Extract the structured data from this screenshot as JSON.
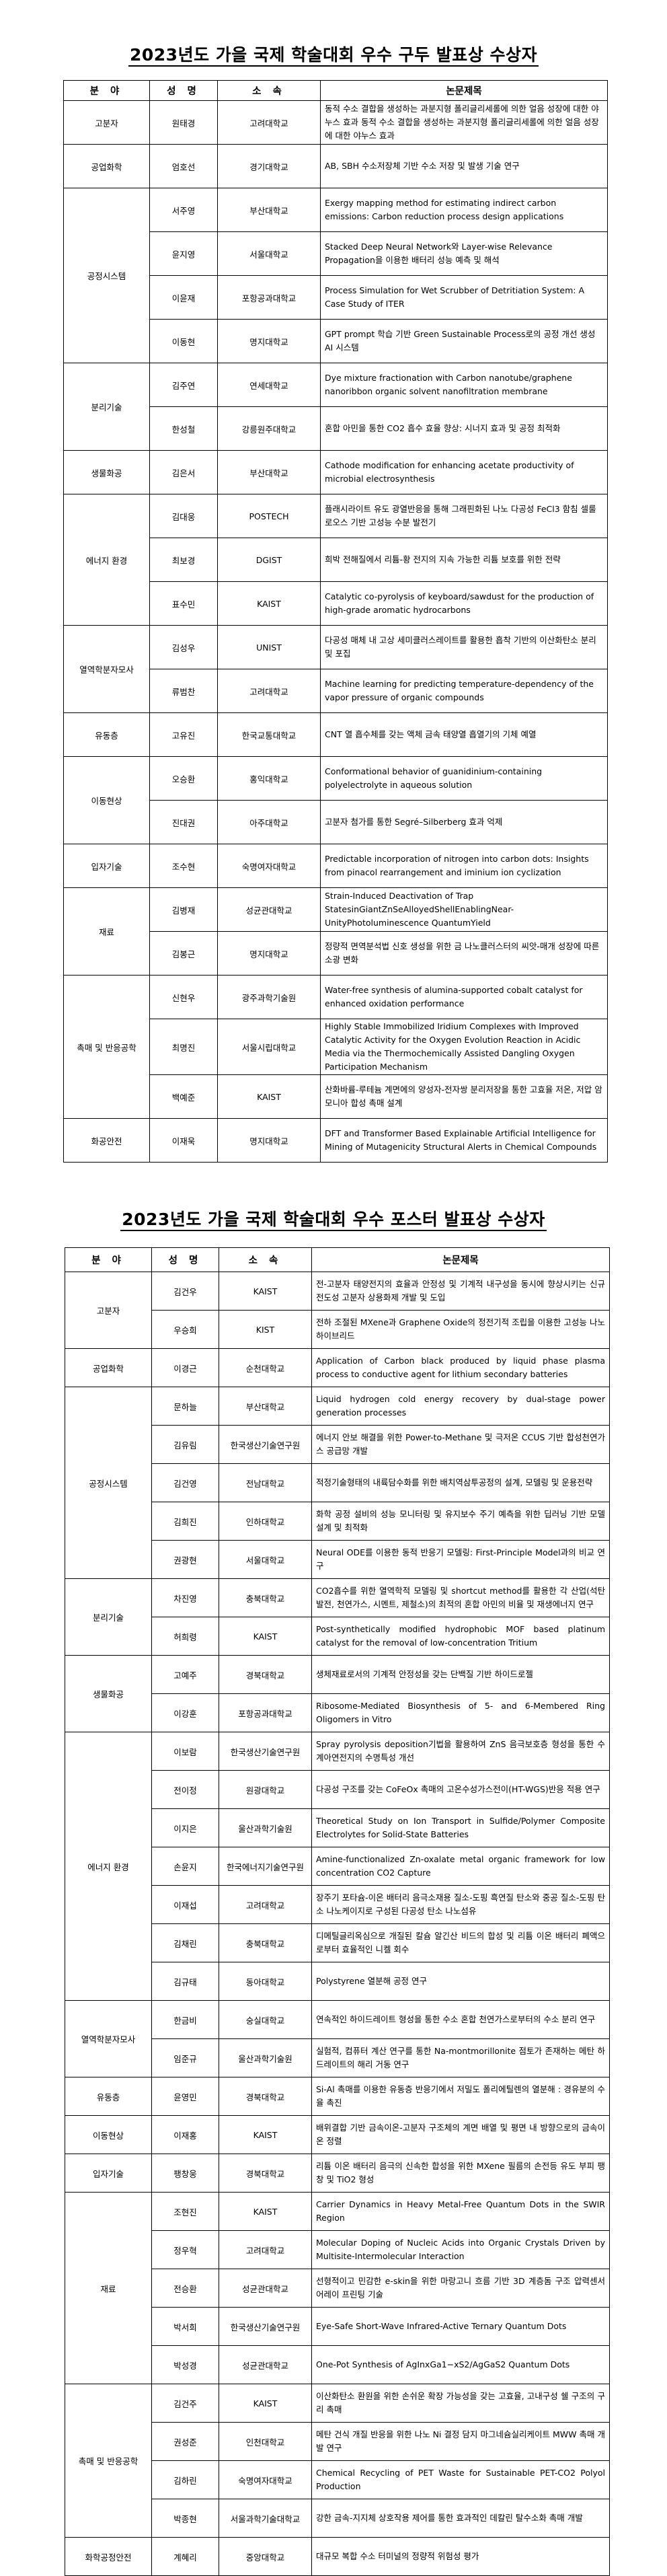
{
  "oral": {
    "title": "2023년도 가을 국제 학술대회 우수 구두 발표상 수상자",
    "headers": [
      "분  야",
      "성  명",
      "소  속",
      "논문제목"
    ],
    "groups": [
      {
        "field": "고분자",
        "rows": [
          {
            "name": "원태경",
            "affil": "고려대학교",
            "paper": "동적 수소 결합을 생성하는 과분지형 폴리글리세롤에 의한 얼음 성장에 대한 야누스 효과 동적 수소 결합을 생성하는 과분지형 폴리글리세롤에 의한 얼음 성장에 대한 야누스 효과"
          }
        ]
      },
      {
        "field": "공업화학",
        "rows": [
          {
            "name": "엄호선",
            "affil": "경기대학교",
            "paper": "AB, SBH 수소저장체 기반 수소 저장 및 발생 기술 연구"
          }
        ]
      },
      {
        "field": "공정시스템",
        "rows": [
          {
            "name": "서주영",
            "affil": "부산대학교",
            "paper": "Exergy mapping method for estimating indirect carbon emissions: Carbon reduction process design applications"
          },
          {
            "name": "윤지영",
            "affil": "서울대학교",
            "paper": "Stacked Deep Neural Network와 Layer-wise Relevance Propagation을 이용한 배터리 성능 예측 및 해석"
          },
          {
            "name": "이윤재",
            "affil": "포항공과대학교",
            "paper": "Process Simulation for Wet Scrubber of Detritiation System: A Case Study of ITER"
          },
          {
            "name": "이동현",
            "affil": "명지대학교",
            "paper": "GPT prompt 학습 기반 Green Sustainable Process로의 공정 개선 생성 AI 시스템"
          }
        ]
      },
      {
        "field": "분리기술",
        "rows": [
          {
            "name": "김주연",
            "affil": "연세대학교",
            "paper": "Dye mixture fractionation with Carbon nanotube/graphene nanoribbon organic solvent nanofiltration membrane"
          },
          {
            "name": "한성철",
            "affil": "강릉원주대학교",
            "paper": "혼합 아민을 통한 CO2 흡수 효율 향상: 시너지 효과 및 공정 최적화"
          }
        ]
      },
      {
        "field": "생물화공",
        "rows": [
          {
            "name": "김은서",
            "affil": "부산대학교",
            "paper": "Cathode modification for enhancing acetate productivity of microbial electrosynthesis"
          }
        ]
      },
      {
        "field": "에너지 환경",
        "rows": [
          {
            "name": "김대웅",
            "affil": "POSTECH",
            "paper": "플래시라이트 유도 광열반응을 통해 그래핀화된 나노 다공성 FeCl3 함침 셀룰로오스 기반 고성능 수분 발전기"
          },
          {
            "name": "최보경",
            "affil": "DGIST",
            "paper": "희박 전해질에서 리튬-황 전지의 지속 가능한 리튬 보호를 위한 전략"
          },
          {
            "name": "표수민",
            "affil": "KAIST",
            "paper": "Catalytic co-pyrolysis of keyboard/sawdust for the production of high-grade aromatic hydrocarbons"
          }
        ]
      },
      {
        "field": "열역학분자모사",
        "rows": [
          {
            "name": "김성우",
            "affil": "UNIST",
            "paper": "다공성 매체 내 고상 세미클러스레이트를 활용한 흡착 기반의 이산화탄소 분리 및 포집"
          },
          {
            "name": "류범찬",
            "affil": "고려대학교",
            "paper": "Machine learning for predicting temperature-dependency of the vapor pressure of organic compounds"
          }
        ]
      },
      {
        "field": "유동층",
        "rows": [
          {
            "name": "고유진",
            "affil": "한국교통대학교",
            "paper": "CNT 열 흡수체를 갖는 액체 금속 태양열 흡열기의 기체 예열"
          }
        ]
      },
      {
        "field": "이동현상",
        "rows": [
          {
            "name": "오승환",
            "affil": "홍익대학교",
            "paper": "Conformational behavior of guanidinium-containing polyelectrolyte in aqueous solution"
          },
          {
            "name": "진대권",
            "affil": "아주대학교",
            "paper": "고분자 첨가를 통한 Segré–Silberberg 효과 억제"
          }
        ]
      },
      {
        "field": "입자기술",
        "rows": [
          {
            "name": "조수현",
            "affil": "숙명여자대학교",
            "paper": "Predictable incorporation of nitrogen into carbon dots: Insights from pinacol rearrangement and iminium ion cyclization"
          }
        ]
      },
      {
        "field": "재료",
        "rows": [
          {
            "name": "김병재",
            "affil": "성균관대학교",
            "paper": "Strain-Induced Deactivation of Trap StatesinGiantZnSeAlloyedShellEnablingNear-UnityPhotoluminescence QuantumYield"
          },
          {
            "name": "김봉근",
            "affil": "명지대학교",
            "paper": "정량적 면역분석법 신호 생성을 위한 금 나노클러스터의 씨앗-매개 성장에 따른 소광 변화"
          }
        ]
      },
      {
        "field": "촉매 및 반응공학",
        "rows": [
          {
            "name": "신현우",
            "affil": "광주과학기술원",
            "paper": "Water-free synthesis of alumina-supported cobalt catalyst for enhanced oxidation performance"
          },
          {
            "name": "최명진",
            "affil": "서울시립대학교",
            "paper": "Highly Stable Immobilized Iridium Complexes with Improved Catalytic Activity for the Oxygen Evolution Reaction in Acidic Media via the Thermochemically Assisted Dangling Oxygen Participation Mechanism"
          },
          {
            "name": "백예준",
            "affil": "KAIST",
            "paper": "산화바륨-루테늄 계면에의 양성자-전자쌍 분리저장을 통한 고효율 저온, 저압 암모니아 합성 촉매 설계"
          }
        ]
      },
      {
        "field": "화공안전",
        "rows": [
          {
            "name": "이재욱",
            "affil": "명지대학교",
            "paper": "DFT and Transformer Based Explainable Artificial Intelligence for Mining of Mutagenicity Structural Alerts in Chemical Compounds"
          }
        ]
      }
    ]
  },
  "poster": {
    "title": "2023년도 가을 국제 학술대회 우수 포스터 발표상 수상자",
    "headers": [
      "분  야",
      "성  명",
      "소  속",
      "논문제목"
    ],
    "groups": [
      {
        "field": "고분자",
        "rows": [
          {
            "name": "김건우",
            "affil": "KAIST",
            "paper": "전-고분자 태양전지의 효율과 안정성 및 기계적 내구성을 동시에 향상시키는 신규 전도성 고분자 상용화제 개발 및 도입"
          },
          {
            "name": "우승희",
            "affil": "KIST",
            "paper": "전하 조절된 MXene과 Graphene Oxide의 정전기적 조립을 이용한 고성능 나노 하이브리드"
          }
        ]
      },
      {
        "field": "공업화학",
        "rows": [
          {
            "name": "이경근",
            "affil": "순천대학교",
            "paper": "Application of Carbon black produced by liquid phase plasma process to conductive agent for lithium secondary batteries"
          }
        ]
      },
      {
        "field": "공정시스템",
        "rows": [
          {
            "name": "문하늘",
            "affil": "부산대학교",
            "paper": "Liquid hydrogen cold energy recovery by dual-stage power generation processes"
          },
          {
            "name": "김유림",
            "affil": "한국생산기술연구원",
            "paper": "에너지 안보 해결을 위한 Power-to-Methane 및 극저온 CCUS 기반 합성천연가스 공급망 개발"
          },
          {
            "name": "김건영",
            "affil": "전남대학교",
            "paper": "적정기술형태의 내륙담수화를 위한 배치역삼투공정의 설계, 모델링 및 운용전략"
          },
          {
            "name": "김희진",
            "affil": "인하대학교",
            "paper": "화학 공정 설비의 성능 모니터링 및 유지보수 주기 예측을 위한 딥러닝 기반 모델 설계 및 최적화"
          },
          {
            "name": "권광현",
            "affil": "서울대학교",
            "paper": "Neural ODE를 이용한 동적 반응기 모델링: First-Principle Model과의 비교 연구"
          }
        ]
      },
      {
        "field": "분리기술",
        "rows": [
          {
            "name": "차진영",
            "affil": "충북대학교",
            "paper": "CO2흡수를 위한 열역학적 모델링 및 shortcut method를 활용한 각 산업(석탄발전, 천연가스, 시멘트, 제철소)의 최적의 혼합 아민의 비율 및 재생에너지 연구"
          },
          {
            "name": "허희령",
            "affil": "KAIST",
            "paper": "Post-synthetically modified hydrophobic MOF based platinum catalyst for the removal of low-concentration Tritium"
          }
        ]
      },
      {
        "field": "생물화공",
        "rows": [
          {
            "name": "고예주",
            "affil": "경북대학교",
            "paper": "생체재료로서의 기계적 안정성을 갖는 단백질 기반 하이드로젤"
          },
          {
            "name": "이강훈",
            "affil": "포항공과대학교",
            "paper": "Ribosome-Mediated Biosynthesis of 5- and 6-Membered Ring Oligomers in Vitro"
          }
        ]
      },
      {
        "field": "에너지 환경",
        "rows": [
          {
            "name": "이보람",
            "affil": "한국생산기술연구원",
            "paper": "Spray pyrolysis deposition기법을 활용하여 ZnS 음극보호층 형성을 통한 수계아연전지의 수명특성 개선"
          },
          {
            "name": "전이정",
            "affil": "원광대학교",
            "paper": "다공성 구조를 갖는 CoFeOx 촉매의 고온수성가스전이(HT-WGS)반응 적용 연구"
          },
          {
            "name": "이지은",
            "affil": "울산과학기술원",
            "paper": "Theoretical Study on Ion Transport in Sulfide/Polymer Composite Electrolytes for Solid-State Batteries"
          },
          {
            "name": "손윤지",
            "affil": "한국에너지기술연구원",
            "paper": "Amine-functionalized Zn-oxalate metal organic framework for low concentration CO2 Capture"
          },
          {
            "name": "이재섭",
            "affil": "고려대학교",
            "paper": "장주기 포타슘-이온 배터리 음극소재용 질소-도핑 흑연질 탄소와 중공 질소-도핑 탄소 나노케이지로 구성된 다공성 탄소 나노섬유"
          },
          {
            "name": "김채린",
            "affil": "충북대학교",
            "paper": "디메틸글리옥심으로 개질된 칼슘 알긴산 비드의 합성 및 리튬 이온 배터리 폐액으로부터 효율적인 니켈 회수"
          },
          {
            "name": "김규태",
            "affil": "동아대학교",
            "paper": "Polystyrene 열분해 공정 연구"
          }
        ]
      },
      {
        "field": "열역학분자모사",
        "rows": [
          {
            "name": "한금비",
            "affil": "숭실대학교",
            "paper": "연속적인 하이드레이트 형성을 통한 수소 혼합 천연가스로부터의 수소 분리 연구"
          },
          {
            "name": "임준규",
            "affil": "울산과학기술원",
            "paper": "실험적, 컴퓨터 계산 연구를 통한 Na-montmorillonite 점토가 존재하는 메탄 하드레이트의 해리 거동 연구"
          }
        ]
      },
      {
        "field": "유동층",
        "rows": [
          {
            "name": "윤영민",
            "affil": "경북대학교",
            "paper": "Si-Al 촉매를 이용한 유동층 반응기에서 저밀도 폴리에틸렌의 열분해 : 경유분의 수율 촉진"
          }
        ]
      },
      {
        "field": "이동현상",
        "rows": [
          {
            "name": "이재홍",
            "affil": "KAIST",
            "paper": "배위결합 기반 금속이온-고분자 구조체의 계면 배열 및 평면 내 방향으로의 금속이온 정렬"
          }
        ]
      },
      {
        "field": "입자기술",
        "rows": [
          {
            "name": "팽창웅",
            "affil": "경북대학교",
            "paper": "리튬 이온 배터리 음극의 신속한 합성을 위한 MXene 필름의 손전등 유도 부피 팽창 및  TiO2 형성"
          }
        ]
      },
      {
        "field": "재료",
        "rows": [
          {
            "name": "조현진",
            "affil": "KAIST",
            "paper": "Carrier Dynamics in Heavy Metal-Free Quantum Dots in the SWIR Region"
          },
          {
            "name": "정우혁",
            "affil": "고려대학교",
            "paper": "Molecular Doping of Nucleic Acids into Organic Crystals Driven by Multisite-Intermolecular Interaction"
          },
          {
            "name": "전승환",
            "affil": "성균관대학교",
            "paper": "선형적이고 민감한 e-skin을 위한 마랑고니 흐름 기반 3D 계층돔 구조 압력센서 어레이 프린팅 기술"
          },
          {
            "name": "박서희",
            "affil": "한국생산기술연구원",
            "paper": "Eye-Safe Short-Wave Infrared-Active Ternary Quantum Dots"
          },
          {
            "name": "박성경",
            "affil": "성균관대학교",
            "paper": "One-Pot Synthesis of AgInxGa1−xS2/AgGaS2 Quantum Dots"
          }
        ]
      },
      {
        "field": "촉매 및 반응공학",
        "rows": [
          {
            "name": "김건주",
            "affil": "KAIST",
            "paper": "이산화탄소 환원을 위한 손쉬운 확장 가능성을 갖는 고효율, 고내구성 쉘 구조의 구리 촉매"
          },
          {
            "name": "권성준",
            "affil": "인천대학교",
            "paper": "메탄 건식 개질 반응을 위한 나노 Ni 결정 담지 마그네슘실리케이트 MWW 촉매 개발 연구"
          },
          {
            "name": "김하린",
            "affil": "숙명여자대학교",
            "paper": "Chemical Recycling of PET Waste for Sustainable PET-CO2 Polyol Production"
          },
          {
            "name": "박종현",
            "affil": "서울과학기술대학교",
            "paper": "강한 금속-지지체 상호작용 제어를 통한 효과적인 데칼린 탈수소화 촉매 개발"
          }
        ]
      },
      {
        "field": "화학공정안전",
        "rows": [
          {
            "name": "계혜리",
            "affil": "중앙대학교",
            "paper": "대규모 복합 수소 터미널의 정량적 위험성 평가"
          }
        ]
      }
    ]
  }
}
